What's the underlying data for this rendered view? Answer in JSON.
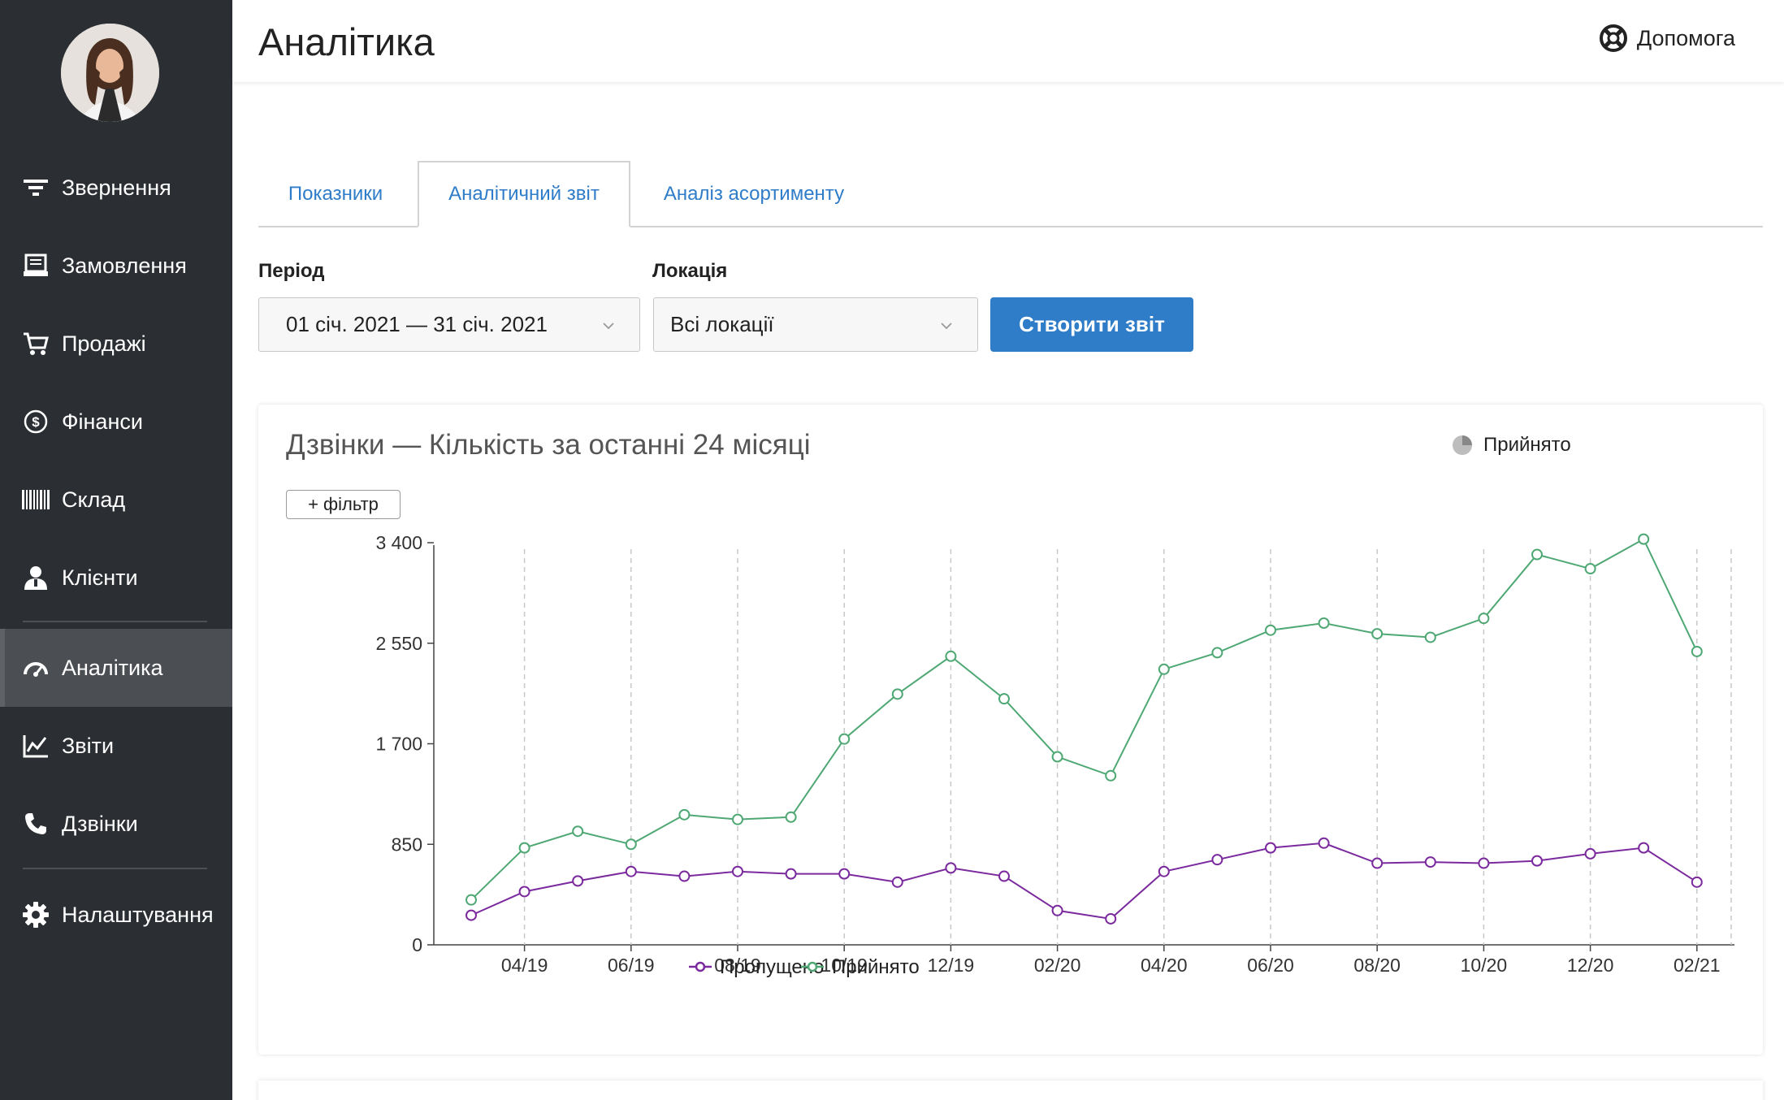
{
  "sidebar": {
    "items": [
      {
        "label": "Звернення",
        "icon": "filter-icon"
      },
      {
        "label": "Замовлення",
        "icon": "orders-icon"
      },
      {
        "label": "Продажі",
        "icon": "cart-icon"
      },
      {
        "label": "Фінанси",
        "icon": "dollar-icon"
      },
      {
        "label": "Склад",
        "icon": "barcode-icon"
      },
      {
        "label": "Клієнти",
        "icon": "client-icon"
      },
      {
        "label": "Аналітика",
        "icon": "gauge-icon"
      },
      {
        "label": "Звіти",
        "icon": "line-chart-icon"
      },
      {
        "label": "Дзвінки",
        "icon": "phone-icon"
      },
      {
        "label": "Налаштування",
        "icon": "gear-icon"
      }
    ],
    "active": "Аналітика"
  },
  "header": {
    "title": "Аналітика",
    "help_label": "Допомога"
  },
  "tabs": [
    {
      "label": "Показники"
    },
    {
      "label": "Аналітичний звіт"
    },
    {
      "label": "Аналіз асортименту"
    }
  ],
  "filters": {
    "period_label": "Період",
    "period_value": "01 січ. 2021 — 31 січ. 2021",
    "location_label": "Локація",
    "location_value": "Всі локації",
    "create_button": "Створити звіт"
  },
  "card": {
    "title": "Дзвінки — Кількість за останні 24 місяці",
    "legend_toggle": "Прийнято",
    "filter_button": "+ фільтр"
  },
  "colors": {
    "accent": "#2f7cc9",
    "sidebar": "#2b2e33",
    "missed": "#7b2a9e",
    "accepted": "#4fa874"
  },
  "chart_data": {
    "type": "line",
    "x": [
      "03/19",
      "04/19",
      "05/19",
      "06/19",
      "07/19",
      "08/19",
      "09/19",
      "10/19",
      "11/19",
      "12/19",
      "01/20",
      "02/20",
      "03/20",
      "04/20",
      "05/20",
      "06/20",
      "07/20",
      "08/20",
      "09/20",
      "10/20",
      "11/20",
      "12/20",
      "01/21",
      "02/21"
    ],
    "x_tick_labels": [
      "04/19",
      "06/19",
      "08/19",
      "10/19",
      "12/19",
      "02/20",
      "04/20",
      "06/20",
      "08/20",
      "10/20",
      "12/20",
      "02/21"
    ],
    "y_tick_labels": [
      "0",
      "850",
      "1 700",
      "2 550",
      "3 400"
    ],
    "ylim": [
      0,
      3400
    ],
    "grid": "vertical dashed",
    "legend_position": "bottom",
    "series": [
      {
        "name": "Пропущено",
        "color": "#7b2a9e",
        "values": [
          250,
          450,
          540,
          620,
          580,
          620,
          600,
          600,
          530,
          650,
          580,
          290,
          220,
          620,
          720,
          820,
          860,
          690,
          700,
          690,
          710,
          770,
          820,
          530
        ]
      },
      {
        "name": "Прийнято",
        "color": "#4fa874",
        "values": [
          380,
          820,
          960,
          850,
          1100,
          1060,
          1080,
          1740,
          2120,
          2440,
          2080,
          1590,
          1430,
          2330,
          2470,
          2660,
          2720,
          2630,
          2600,
          2760,
          3300,
          3180,
          3430,
          2480
        ]
      }
    ]
  }
}
